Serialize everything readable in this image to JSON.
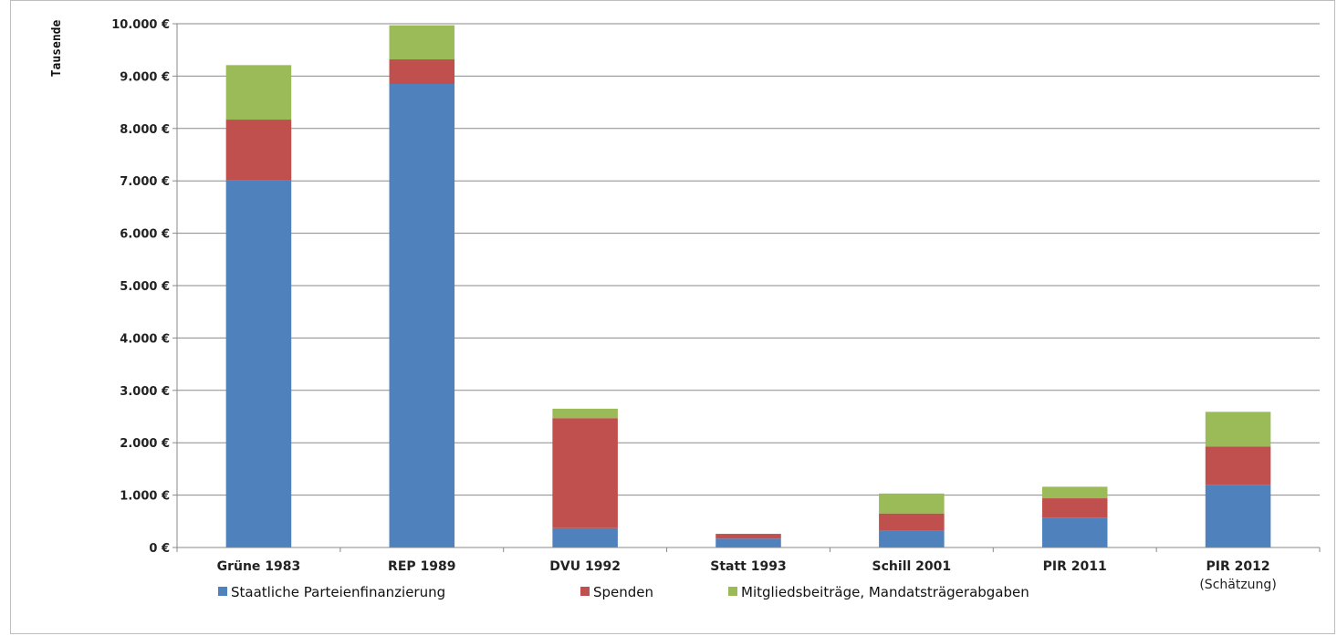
{
  "chart_data": {
    "type": "bar",
    "stacked": true,
    "categories": [
      [
        "Grüne 1983"
      ],
      [
        "REP 1989"
      ],
      [
        "DVU 1992"
      ],
      [
        "Statt 1993"
      ],
      [
        "Schill 2001"
      ],
      [
        "PIR 2011"
      ],
      [
        "PIR 2012",
        "(Schätzung)"
      ]
    ],
    "series": [
      {
        "name": "Staatliche Parteienfinanzierung",
        "color": "#4f81bd",
        "values": [
          7020,
          8850,
          370,
          170,
          330,
          570,
          1190
        ]
      },
      {
        "name": "Spenden",
        "color": "#c0504d",
        "values": [
          1150,
          470,
          2100,
          90,
          320,
          370,
          740
        ]
      },
      {
        "name": "Mitgliedsbeiträge, Mandatsträgerabgaben",
        "color": "#9bbb59",
        "values": [
          1040,
          650,
          180,
          0,
          380,
          220,
          660
        ]
      }
    ],
    "ylabel": "Tausende",
    "ylim": [
      0,
      10000
    ],
    "yticks": [
      "0 €",
      "1.000 €",
      "2.000 €",
      "3.000 €",
      "4.000 €",
      "5.000 €",
      "6.000 €",
      "7.000 €",
      "8.000 €",
      "9.000 €",
      "10.000 €"
    ],
    "grid": true,
    "legend_position": "bottom"
  }
}
